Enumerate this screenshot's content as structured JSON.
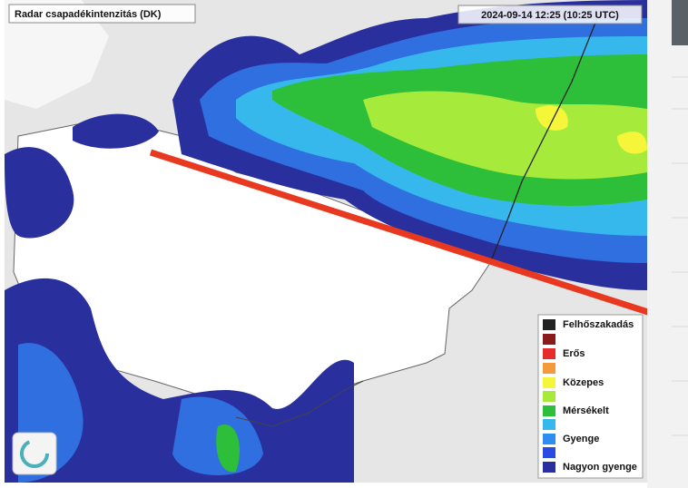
{
  "map": {
    "title": "Radar csapadékintenzitás (DK)",
    "timestamp": "2024-09-14 12:25 (10:25 UTC)",
    "legend": [
      "Felhőszakadás",
      "Erős",
      "Közepes",
      "Mérsékelt",
      "Gyenge",
      "Nagyon gyenge"
    ]
  }
}
